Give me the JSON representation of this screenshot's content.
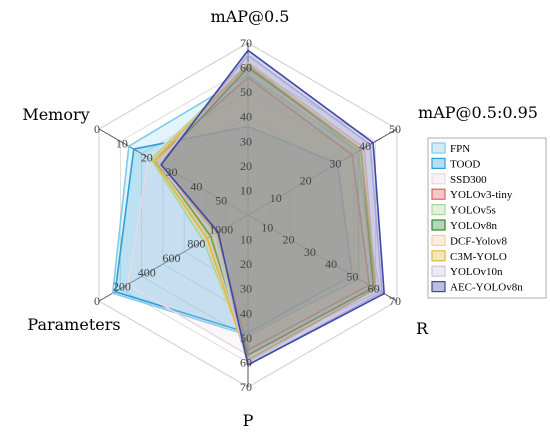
{
  "chart_data": {
    "type": "radar",
    "axes": [
      {
        "name": "mAP@0.5",
        "ticks": [
          "10",
          "20",
          "30",
          "40",
          "50",
          "60",
          "70"
        ],
        "min": 0,
        "max": 70,
        "inverted": false
      },
      {
        "name": "mAP@0.5:0.95",
        "ticks": [
          "10",
          "20",
          "30",
          "40",
          "50"
        ],
        "min": 0,
        "max": 50,
        "inverted": false
      },
      {
        "name": "R",
        "ticks": [
          "10",
          "20",
          "30",
          "40",
          "50",
          "60",
          "70"
        ],
        "min": 0,
        "max": 70,
        "inverted": false
      },
      {
        "name": "P",
        "ticks": [
          "10",
          "20",
          "30",
          "40",
          "50",
          "60",
          "70"
        ],
        "min": 0,
        "max": 70,
        "inverted": false
      },
      {
        "name": "Parameters",
        "ticks": [
          "1000",
          "800",
          "600",
          "400",
          "200",
          "0"
        ],
        "min": 0,
        "max": 1200,
        "inverted": true
      },
      {
        "name": "Memory",
        "ticks": [
          "50",
          "40",
          "30",
          "20",
          "10",
          "0"
        ],
        "min": 0,
        "max": 60,
        "inverted": true
      }
    ],
    "series": [
      {
        "name": "FPN",
        "color": "#7fcbe8",
        "values": [
          57,
          37,
          52,
          49,
          110,
          12
        ]
      },
      {
        "name": "TOOD",
        "color": "#2f9fd8",
        "values": [
          36,
          30,
          49,
          48,
          130,
          14
        ]
      },
      {
        "name": "SSD300",
        "color": "#ead8e6",
        "values": [
          59,
          36,
          62,
          57,
          230,
          20
        ]
      },
      {
        "name": "YOLOv3-tiny",
        "color": "#e06060",
        "values": [
          56,
          35,
          57,
          55,
          950,
          22
        ]
      },
      {
        "name": "YOLOv5s",
        "color": "#a6d89a",
        "values": [
          61,
          37,
          59,
          57,
          840,
          21
        ]
      },
      {
        "name": "YOLOv8n",
        "color": "#2e8a2e",
        "values": [
          60,
          38,
          59,
          57,
          900,
          24
        ]
      },
      {
        "name": "DCF-Yolov8",
        "color": "#f2cfa4",
        "values": [
          62,
          39,
          60,
          59,
          860,
          22
        ]
      },
      {
        "name": "C3M-YOLO",
        "color": "#e0b840",
        "values": [
          61,
          38,
          60,
          59,
          870,
          22
        ]
      },
      {
        "name": "YOLOv10n",
        "color": "#ccc3e0",
        "values": [
          65,
          41,
          63,
          61,
          920,
          24
        ]
      },
      {
        "name": "AEC-YOLOv8n",
        "color": "#3c48a8",
        "values": [
          67,
          42,
          64,
          61,
          960,
          25
        ]
      }
    ],
    "legend_position": "right"
  }
}
